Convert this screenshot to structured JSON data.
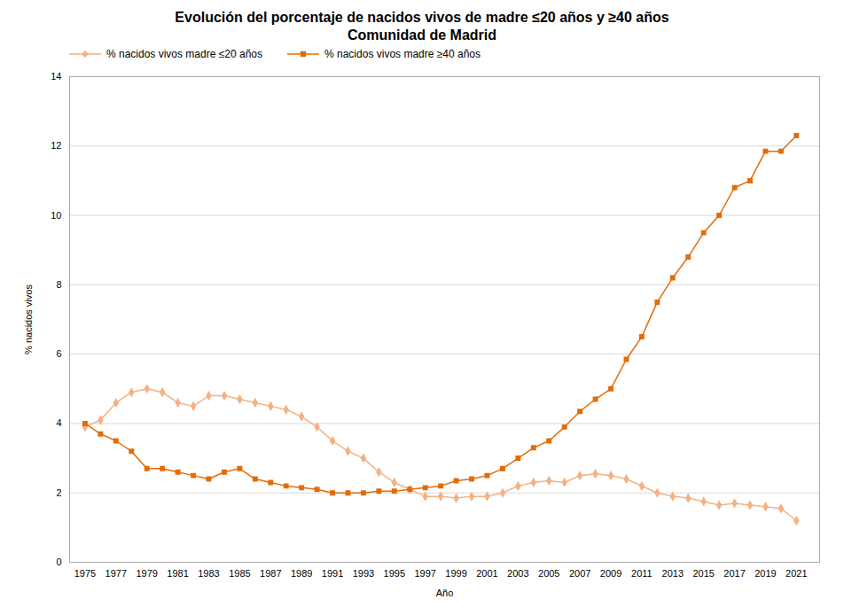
{
  "chart_data": {
    "type": "line",
    "title": "Evolución del porcentaje de nacidos vivos de madre ≤20 años y ≥40 años",
    "subtitle": "Comunidad de Madrid",
    "x_label": "Año",
    "y_label": "% nacidos vivos",
    "x": [
      1975,
      1976,
      1977,
      1978,
      1979,
      1980,
      1981,
      1982,
      1983,
      1984,
      1985,
      1986,
      1987,
      1988,
      1989,
      1990,
      1991,
      1992,
      1993,
      1994,
      1995,
      1996,
      1997,
      1998,
      1999,
      2000,
      2001,
      2002,
      2003,
      2004,
      2005,
      2006,
      2007,
      2008,
      2009,
      2010,
      2011,
      2012,
      2013,
      2014,
      2015,
      2016,
      2017,
      2018,
      2019,
      2020,
      2021
    ],
    "series": [
      {
        "name": "% nacidos vivos  madre ≤20 años",
        "color": "#f4b183",
        "marker": "diamond",
        "values": [
          3.9,
          4.1,
          4.6,
          4.9,
          5.0,
          4.9,
          4.6,
          4.5,
          4.8,
          4.8,
          4.7,
          4.6,
          4.5,
          4.4,
          4.2,
          3.9,
          3.5,
          3.2,
          3.0,
          2.6,
          2.3,
          2.1,
          1.9,
          1.9,
          1.85,
          1.9,
          1.9,
          2.0,
          2.2,
          2.3,
          2.35,
          2.3,
          2.5,
          2.55,
          2.5,
          2.4,
          2.2,
          2.0,
          1.9,
          1.85,
          1.75,
          1.65,
          1.7,
          1.65,
          1.6,
          1.55,
          1.2
        ]
      },
      {
        "name": "% nacidos vivos  madre ≥40 años",
        "color": "#e36c09",
        "marker": "square",
        "values": [
          4.0,
          3.7,
          3.5,
          3.2,
          2.7,
          2.7,
          2.6,
          2.5,
          2.4,
          2.6,
          2.7,
          2.4,
          2.3,
          2.2,
          2.15,
          2.1,
          2.0,
          2.0,
          2.0,
          2.05,
          2.05,
          2.1,
          2.15,
          2.2,
          2.35,
          2.4,
          2.5,
          2.7,
          3.0,
          3.3,
          3.5,
          3.9,
          4.35,
          4.7,
          5.0,
          5.85,
          6.5,
          7.5,
          8.2,
          8.8,
          9.5,
          10.0,
          10.8,
          11.0,
          11.85,
          11.85,
          12.3
        ]
      }
    ],
    "xlim": [
      1974,
      2022.5
    ],
    "xticks": [
      1975,
      1977,
      1979,
      1981,
      1983,
      1985,
      1987,
      1989,
      1991,
      1993,
      1995,
      1997,
      1999,
      2001,
      2003,
      2005,
      2007,
      2009,
      2011,
      2013,
      2015,
      2017,
      2019,
      2021
    ],
    "ylim": [
      0,
      14
    ],
    "yticks": [
      0,
      2,
      4,
      6,
      8,
      10,
      12,
      14
    ],
    "grid": "y",
    "legend": "upper left"
  }
}
